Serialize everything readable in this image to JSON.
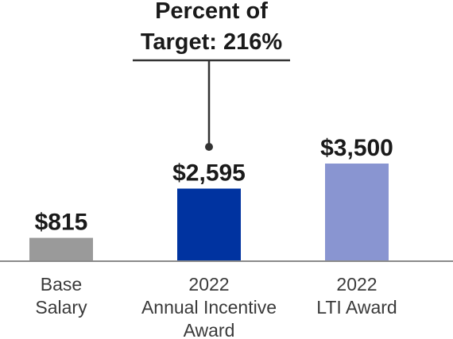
{
  "chart_data": {
    "type": "bar",
    "categories": [
      [
        "Base",
        "Salary"
      ],
      [
        "2022",
        "Annual Incentive",
        "Award"
      ],
      [
        "2022",
        "LTI Award"
      ]
    ],
    "values": [
      815,
      2595,
      3500
    ],
    "value_labels": [
      "$815",
      "$2,595",
      "$3,500"
    ],
    "colors": [
      "#9a9a9a",
      "#0033a0",
      "#8995d1"
    ],
    "ylim": [
      0,
      3500
    ],
    "grid": false,
    "title": "",
    "xlabel": "",
    "ylabel": "",
    "annotation": {
      "lines": [
        "Percent of",
        "Target: 216%"
      ],
      "target_category_index": 1
    }
  }
}
